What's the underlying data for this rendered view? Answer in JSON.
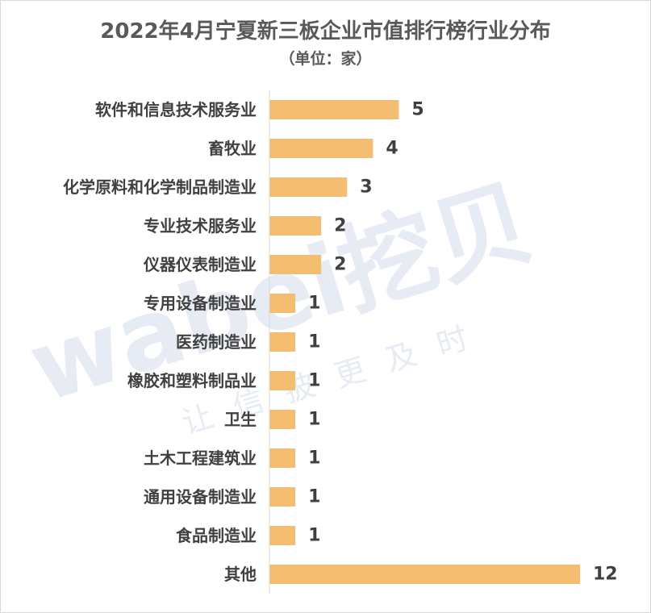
{
  "chart_data": {
    "type": "bar",
    "orientation": "horizontal",
    "title": "2022年4月宁夏新三板企业市值排行榜行业分布",
    "subtitle": "（单位：家）",
    "categories": [
      "软件和信息技术服务业",
      "畜牧业",
      "化学原料和化学制品制造业",
      "专业技术服务业",
      "仪器仪表制造业",
      "专用设备制造业",
      "医药制造业",
      "橡胶和塑料制品业",
      "卫生",
      "土木工程建筑业",
      "通用设备制造业",
      "食品制造业",
      "其他"
    ],
    "values": [
      5,
      4,
      3,
      2,
      2,
      1,
      1,
      1,
      1,
      1,
      1,
      1,
      12
    ],
    "data_labels": [
      "5",
      "4",
      "3",
      "2",
      "2",
      "1",
      "1",
      "1",
      "1",
      "1",
      "1",
      "1",
      "12"
    ],
    "xlim": [
      0,
      12
    ],
    "grid": false,
    "legend": "none",
    "bar_color": "#F4BE72"
  },
  "watermark": {
    "brand": "wabei挖贝",
    "slogan": "让信披更及时"
  },
  "colors": {
    "text": "#595959",
    "label": "#404040",
    "axis": "#d9d9d9",
    "watermark": "#e3e7f1"
  }
}
